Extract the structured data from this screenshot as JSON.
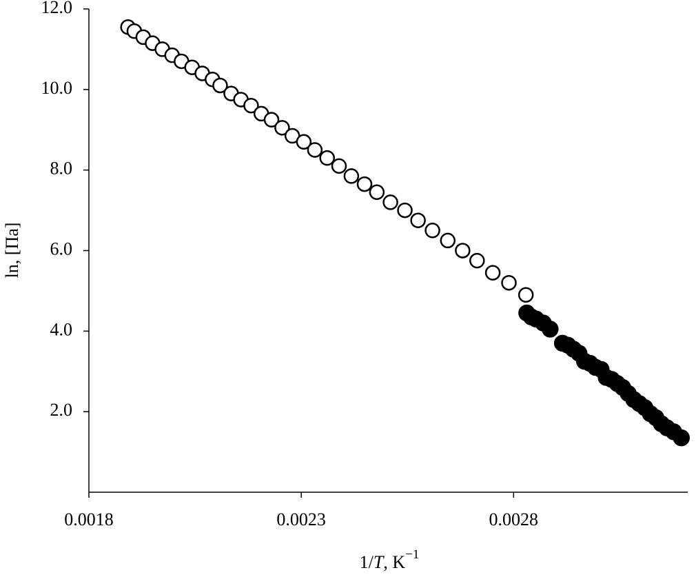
{
  "chart_data": {
    "type": "scatter",
    "ylabel": "ln, [Па]",
    "xlabel_parts": [
      "1/",
      "T",
      ", K",
      "−1"
    ],
    "xlim": [
      0.0018,
      0.00321
    ],
    "ylim": [
      0,
      12
    ],
    "xticks": [
      0.0018,
      0.0023,
      0.0028
    ],
    "yticks": [
      {
        "value": 2,
        "label": "2.0"
      },
      {
        "value": 4,
        "label": "4.0"
      },
      {
        "value": 6,
        "label": "6.0"
      },
      {
        "value": 8,
        "label": "8.0"
      },
      {
        "value": 10,
        "label": "10.0"
      },
      {
        "value": 12,
        "label": "12.0"
      }
    ],
    "grid": false,
    "series": [
      {
        "color": "#000000",
        "filled": false,
        "x": [
          0.001892,
          0.001907,
          0.001928,
          0.00195,
          0.001973,
          0.001996,
          0.002018,
          0.002043,
          0.002067,
          0.002091,
          0.002109,
          0.002135,
          0.002158,
          0.002182,
          0.002206,
          0.00223,
          0.002255,
          0.002279,
          0.002306,
          0.002332,
          0.002361,
          0.002389,
          0.002418,
          0.002449,
          0.002478,
          0.00251,
          0.002544,
          0.002575,
          0.002609,
          0.002645,
          0.00268,
          0.002714,
          0.002751,
          0.002789,
          0.002829
        ],
        "values": [
          11.55,
          11.45,
          11.3,
          11.15,
          11.0,
          10.85,
          10.7,
          10.55,
          10.4,
          10.25,
          10.1,
          9.9,
          9.75,
          9.6,
          9.4,
          9.25,
          9.05,
          8.85,
          8.7,
          8.5,
          8.3,
          8.1,
          7.85,
          7.65,
          7.45,
          7.2,
          7.0,
          6.75,
          6.5,
          6.25,
          6.0,
          5.75,
          5.45,
          5.2,
          4.9
        ]
      },
      {
        "color": "#000000",
        "filled": true,
        "x": [
          0.002831,
          0.002842,
          0.002853,
          0.00287,
          0.002886,
          0.002915,
          0.002928,
          0.002941,
          0.002954,
          0.002967,
          0.00298,
          0.002993,
          0.003006,
          0.003018,
          0.003031,
          0.003044,
          0.003057,
          0.00307,
          0.003083,
          0.003096,
          0.003109,
          0.003122,
          0.003135,
          0.003148,
          0.003161,
          0.003177,
          0.003195
        ],
        "values": [
          4.45,
          4.35,
          4.3,
          4.2,
          4.05,
          3.7,
          3.65,
          3.55,
          3.45,
          3.25,
          3.2,
          3.1,
          3.05,
          2.85,
          2.8,
          2.7,
          2.6,
          2.45,
          2.3,
          2.2,
          2.1,
          1.95,
          1.85,
          1.7,
          1.6,
          1.5,
          1.35
        ]
      }
    ]
  }
}
